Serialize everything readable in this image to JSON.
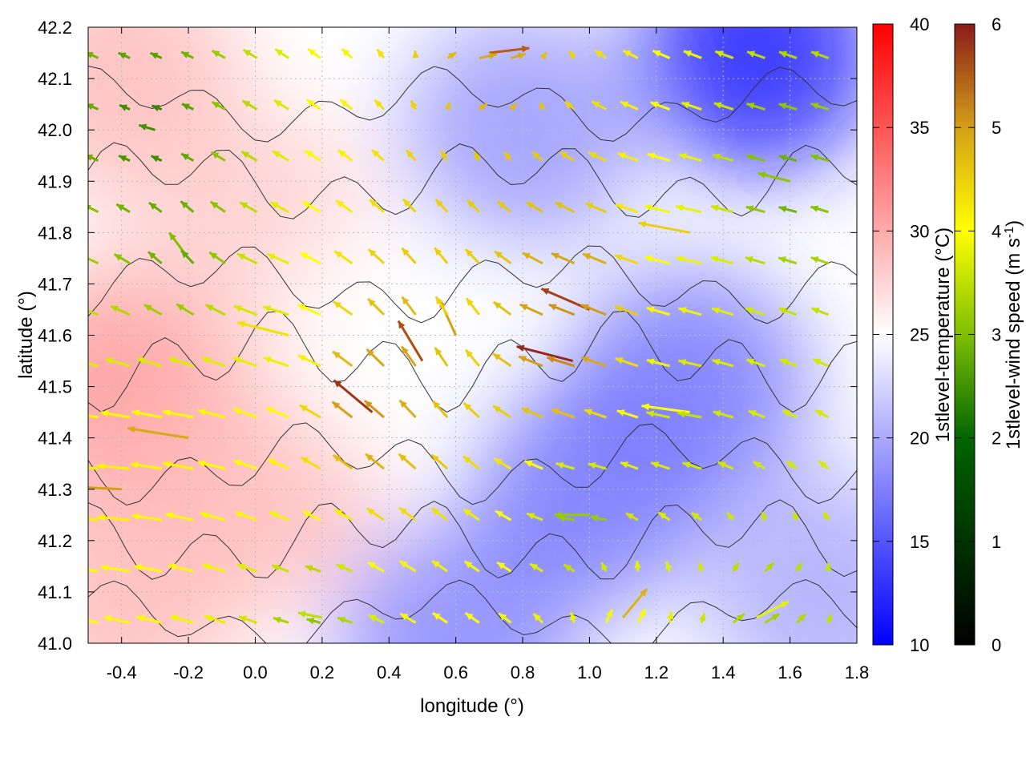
{
  "chart_data": {
    "type": "heatmap",
    "xlabel": "longitude (°)",
    "ylabel": "latitude (°)",
    "xlim": [
      -0.5,
      1.8
    ],
    "ylim": [
      41.0,
      42.2
    ],
    "xticks": [
      "-0.4",
      "-0.2",
      "0.0",
      "0.2",
      "0.4",
      "0.6",
      "0.8",
      "1.0",
      "1.2",
      "1.4",
      "1.6",
      "1.8"
    ],
    "yticks": [
      "41.0",
      "41.1",
      "41.2",
      "41.3",
      "41.4",
      "41.5",
      "41.6",
      "41.7",
      "41.8",
      "41.9",
      "42.0",
      "42.1",
      "42.2"
    ],
    "grid": true,
    "temperature": {
      "label": "1stlevel-temperature (°C)",
      "range": [
        10,
        40
      ],
      "ticks": [
        "10",
        "15",
        "20",
        "25",
        "30",
        "35",
        "40"
      ],
      "colors": [
        "#0000ff",
        "#ffffff",
        "#ff0000"
      ],
      "field_description": "warm (27–32 °C) west of 0.3°E, cool (14–20 °C) east of 0.7°E, coolest in the north-east corner",
      "samples": [
        {
          "lon": -0.4,
          "lat": 42.1,
          "value": 29
        },
        {
          "lon": -0.4,
          "lat": 41.5,
          "value": 31
        },
        {
          "lon": -0.4,
          "lat": 41.1,
          "value": 29
        },
        {
          "lon": 0.0,
          "lat": 41.8,
          "value": 28
        },
        {
          "lon": 0.0,
          "lat": 41.3,
          "value": 29
        },
        {
          "lon": 0.4,
          "lat": 41.6,
          "value": 25
        },
        {
          "lon": 0.6,
          "lat": 41.0,
          "value": 18
        },
        {
          "lon": 0.8,
          "lat": 42.0,
          "value": 19
        },
        {
          "lon": 1.0,
          "lat": 41.3,
          "value": 17
        },
        {
          "lon": 1.3,
          "lat": 41.5,
          "value": 17
        },
        {
          "lon": 1.5,
          "lat": 42.15,
          "value": 12
        },
        {
          "lon": 1.7,
          "lat": 41.1,
          "value": 20
        }
      ]
    },
    "wind_speed": {
      "label": "1stlevel-wind speed (m s-1)",
      "range": [
        0,
        6
      ],
      "ticks": [
        "0",
        "1",
        "2",
        "3",
        "4",
        "5",
        "6"
      ],
      "colors": [
        "#000000",
        "#006400",
        "#7fbf00",
        "#ffff00",
        "#d4a017",
        "#b85a10",
        "#8b1a1a"
      ],
      "vectors": [
        {
          "lon": -0.4,
          "lat": 41.3,
          "u": -4,
          "v": 0.2,
          "speed": 4.0
        },
        {
          "lon": -0.2,
          "lat": 41.4,
          "u": -3.8,
          "v": 0.6,
          "speed": 3.9
        },
        {
          "lon": -0.2,
          "lat": 41.75,
          "u": -1.2,
          "v": 1.6,
          "speed": 2.0
        },
        {
          "lon": 0.1,
          "lat": 41.6,
          "u": -3.2,
          "v": 0.8,
          "speed": 3.3
        },
        {
          "lon": 0.35,
          "lat": 41.45,
          "u": -2.4,
          "v": 2.0,
          "speed": 5.6
        },
        {
          "lon": 0.5,
          "lat": 41.55,
          "u": -1.5,
          "v": 2.5,
          "speed": 5.2
        },
        {
          "lon": 0.6,
          "lat": 41.6,
          "u": -1.0,
          "v": 2.2,
          "speed": 4.0
        },
        {
          "lon": 0.7,
          "lat": 42.15,
          "u": 2.5,
          "v": 0.3,
          "speed": 5.0
        },
        {
          "lon": 0.95,
          "lat": 41.55,
          "u": -3.5,
          "v": 0.9,
          "speed": 5.8
        },
        {
          "lon": 1.0,
          "lat": 41.65,
          "u": -3.0,
          "v": 1.3,
          "speed": 5.4
        },
        {
          "lon": 1.3,
          "lat": 41.8,
          "u": -3.2,
          "v": 0.6,
          "speed": 3.5
        },
        {
          "lon": 1.3,
          "lat": 41.45,
          "u": -3.0,
          "v": 0.4,
          "speed": 3.0
        },
        {
          "lon": 1.0,
          "lat": 41.25,
          "u": -2.2,
          "v": 0.0,
          "speed": 2.2
        },
        {
          "lon": 1.5,
          "lat": 41.05,
          "u": 2.0,
          "v": 1.0,
          "speed": 2.8
        },
        {
          "lon": 1.1,
          "lat": 41.05,
          "u": 1.5,
          "v": 1.8,
          "speed": 3.8
        },
        {
          "lon": 1.6,
          "lat": 41.9,
          "u": -2.0,
          "v": 0.5,
          "speed": 2.1
        },
        {
          "lon": 0.2,
          "lat": 41.05,
          "u": -1.5,
          "v": 0.3,
          "speed": 2.5
        },
        {
          "lon": -0.3,
          "lat": 42.0,
          "u": -1.0,
          "v": 0.3,
          "speed": 1.5
        }
      ]
    }
  }
}
